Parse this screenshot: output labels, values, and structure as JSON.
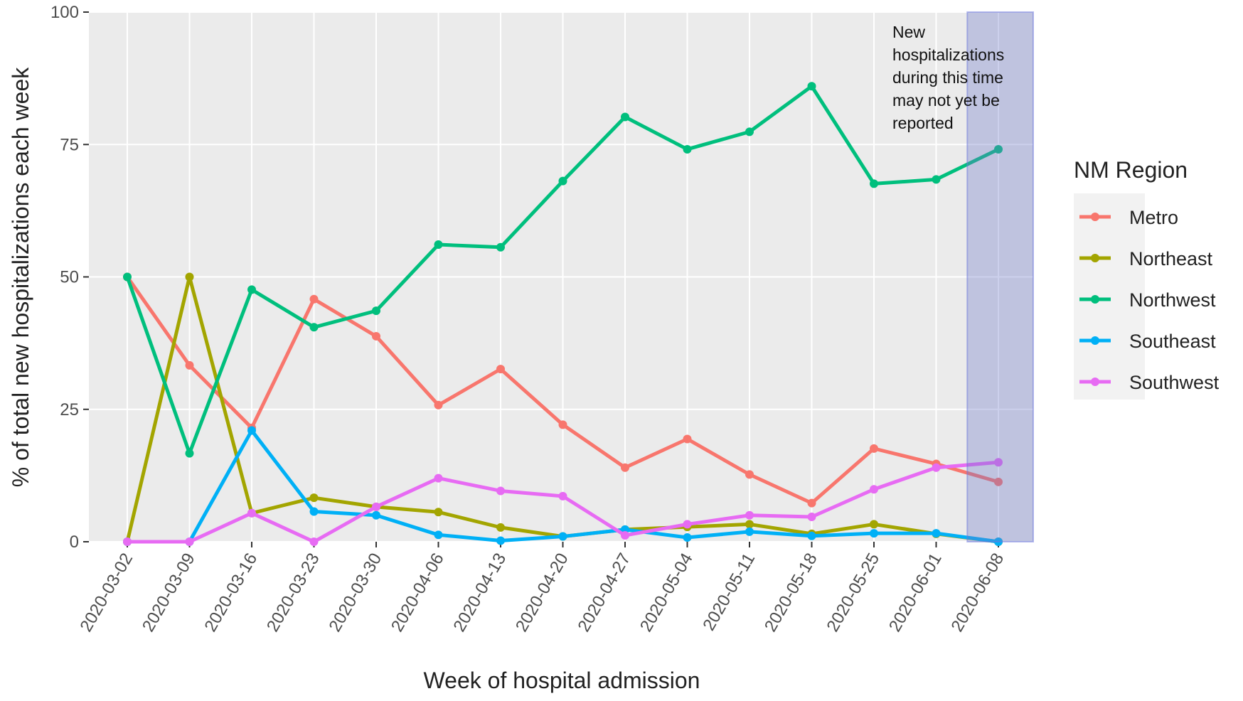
{
  "chart_data": {
    "type": "line",
    "x_label": "Week of hospital admission",
    "y_label": "% of total new hospitalizations each week",
    "legend_title": "NM Region",
    "legend": "right",
    "grid": true,
    "annotation": [
      "New",
      "hospitalizations",
      "during this time",
      "may not yet be",
      "reported"
    ],
    "categories": [
      "2020-03-02",
      "2020-03-09",
      "2020-03-16",
      "2020-03-23",
      "2020-03-30",
      "2020-04-06",
      "2020-04-13",
      "2020-04-20",
      "2020-04-27",
      "2020-05-04",
      "2020-05-11",
      "2020-05-18",
      "2020-05-25",
      "2020-06-01",
      "2020-06-08"
    ],
    "ylim": [
      0,
      100
    ],
    "yticks": [
      0,
      25,
      50,
      75,
      100
    ],
    "series": [
      {
        "name": "Metro",
        "color": "#F8766D",
        "values": [
          50,
          33.3,
          21.5,
          45.8,
          38.8,
          25.8,
          32.6,
          22.1,
          14.0,
          19.4,
          12.7,
          7.3,
          17.6,
          14.7,
          11.3
        ]
      },
      {
        "name": "Northeast",
        "color": "#A3A500",
        "values": [
          0,
          50,
          5.4,
          8.3,
          6.6,
          5.6,
          2.7,
          1.0,
          2.3,
          2.8,
          3.3,
          1.5,
          3.3,
          1.5,
          0
        ]
      },
      {
        "name": "Northwest",
        "color": "#00BF7D",
        "values": [
          50,
          16.7,
          47.6,
          40.5,
          43.6,
          56.1,
          55.6,
          68.1,
          80.2,
          74.1,
          77.4,
          86.0,
          67.6,
          68.4,
          74.1
        ]
      },
      {
        "name": "Southeast",
        "color": "#00B0F6",
        "values": [
          0,
          0,
          21.0,
          5.7,
          5.0,
          1.3,
          0.2,
          1.0,
          2.3,
          0.8,
          1.9,
          1.1,
          1.6,
          1.6,
          0
        ]
      },
      {
        "name": "Southwest",
        "color": "#E76BF3",
        "values": [
          0,
          0,
          5.4,
          0,
          6.6,
          12.0,
          9.6,
          8.6,
          1.2,
          3.3,
          5.0,
          4.7,
          9.9,
          14.0,
          15.0
        ]
      }
    ]
  }
}
